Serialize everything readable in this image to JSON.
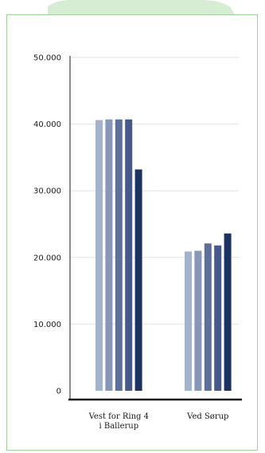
{
  "chart_data": {
    "type": "bar",
    "categories": [
      [
        "Vest for Ring 4",
        "i Ballerup"
      ],
      [
        "Ved Sørup"
      ]
    ],
    "series": [
      {
        "values": [
          40600,
          20900
        ]
      },
      {
        "values": [
          40700,
          21000
        ]
      },
      {
        "values": [
          40700,
          22100
        ]
      },
      {
        "values": [
          40700,
          21800
        ]
      },
      {
        "values": [
          33200,
          23600
        ]
      }
    ],
    "colors": [
      "#a4b3cc",
      "#8797b5",
      "#5d7099",
      "#46598a",
      "#1c3261"
    ],
    "ylim": [
      0,
      50000
    ],
    "yticks": [
      0,
      10000,
      20000,
      30000,
      40000,
      50000
    ],
    "ytick_labels": [
      "0",
      "10.000",
      "20.000",
      "30.000",
      "40.000",
      "50.000"
    ],
    "grid": true,
    "title": "",
    "xlabel": "",
    "ylabel": ""
  },
  "decor_colors": {
    "frame_border": "#9fd39a",
    "top_shape": "#d6edd3",
    "axis": "#1a1a1a",
    "gridline": "#e2e2e2"
  }
}
